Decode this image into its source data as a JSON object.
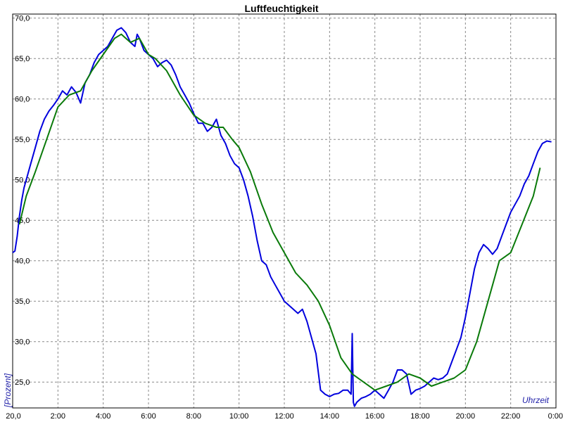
{
  "chart_data": {
    "type": "line",
    "title": "Luftfeuchtigkeit",
    "xlabel": "Uhrzeit",
    "ylabel": "[Prozent]",
    "ylim": [
      21.8,
      70.5
    ],
    "xlim": [
      0,
      24
    ],
    "x_unit": "hours",
    "grid": true,
    "legend": "none",
    "yticks": [
      "25,0",
      "30,0",
      "35,0",
      "40,0",
      "45,0",
      "50,0",
      "55,0",
      "60,0",
      "65,0",
      "70,0"
    ],
    "ytick_values": [
      25,
      30,
      35,
      40,
      45,
      50,
      55,
      60,
      65,
      70
    ],
    "xticks": [
      "20,0",
      "2:00",
      "4:00",
      "6:00",
      "8:00",
      "10:00",
      "12:00",
      "14:00",
      "16:00",
      "18:00",
      "20:00",
      "22:00",
      "0:00"
    ],
    "xtick_values": [
      0,
      2,
      4,
      6,
      8,
      10,
      12,
      14,
      16,
      18,
      20,
      22,
      24
    ],
    "series": [
      {
        "color": "#0000dd",
        "x": [
          0,
          0.1,
          0.2,
          0.3,
          0.4,
          0.5,
          0.6,
          0.8,
          1.0,
          1.2,
          1.4,
          1.6,
          1.8,
          2.0,
          2.2,
          2.4,
          2.6,
          2.8,
          3.0,
          3.2,
          3.4,
          3.6,
          3.8,
          4.0,
          4.2,
          4.4,
          4.6,
          4.8,
          5.0,
          5.2,
          5.4,
          5.5,
          5.6,
          5.8,
          6.0,
          6.2,
          6.4,
          6.6,
          6.8,
          7.0,
          7.2,
          7.4,
          7.6,
          7.8,
          8.0,
          8.2,
          8.4,
          8.6,
          8.8,
          9.0,
          9.2,
          9.4,
          9.6,
          9.8,
          10.0,
          10.2,
          10.4,
          10.6,
          10.8,
          11.0,
          11.2,
          11.4,
          11.6,
          11.8,
          12.0,
          12.2,
          12.4,
          12.6,
          12.8,
          13.0,
          13.2,
          13.4,
          13.6,
          13.8,
          14.0,
          14.2,
          14.4,
          14.6,
          14.8,
          14.95,
          15.0,
          15.05,
          15.1,
          15.2,
          15.4,
          15.6,
          15.8,
          16.0,
          16.2,
          16.4,
          16.6,
          16.8,
          17.0,
          17.2,
          17.4,
          17.6,
          17.8,
          18.0,
          18.2,
          18.4,
          18.6,
          18.8,
          19.0,
          19.2,
          19.4,
          19.6,
          19.8,
          20.0,
          20.2,
          20.4,
          20.6,
          20.8,
          21.0,
          21.2,
          21.4,
          21.6,
          21.8,
          22.0,
          22.2,
          22.4,
          22.6,
          22.8,
          23.0,
          23.2,
          23.4,
          23.6,
          23.8
        ],
        "y": [
          41.0,
          41.2,
          43.0,
          45.5,
          47.5,
          49.0,
          50.0,
          52.0,
          54.0,
          56.0,
          57.5,
          58.5,
          59.2,
          60.0,
          61.0,
          60.5,
          61.5,
          60.8,
          59.5,
          62.0,
          63.0,
          64.5,
          65.5,
          66.0,
          66.5,
          67.5,
          68.5,
          68.8,
          68.2,
          67.0,
          66.5,
          68.0,
          67.5,
          66.0,
          65.5,
          65.0,
          64.0,
          64.5,
          64.8,
          64.2,
          63.0,
          61.5,
          60.5,
          59.5,
          58.2,
          57.0,
          57.0,
          56.0,
          56.5,
          57.5,
          55.5,
          54.5,
          53.0,
          52.0,
          51.5,
          50.0,
          48.0,
          45.5,
          42.5,
          40.0,
          39.5,
          38.0,
          37.0,
          36.0,
          35.0,
          34.5,
          34.0,
          33.5,
          34.0,
          32.5,
          30.5,
          28.5,
          24.0,
          23.5,
          23.2,
          23.5,
          23.6,
          24.0,
          24.0,
          23.5,
          31.0,
          22.5,
          22.0,
          22.5,
          23.0,
          23.2,
          23.5,
          24.0,
          23.5,
          23.0,
          24.0,
          25.0,
          26.5,
          26.5,
          26.0,
          23.5,
          24.0,
          24.2,
          24.5,
          25.0,
          25.5,
          25.3,
          25.5,
          26.0,
          27.5,
          29.0,
          30.5,
          33.0,
          36.0,
          39.0,
          41.0,
          42.0,
          41.5,
          40.8,
          41.5,
          43.0,
          44.5,
          46.0,
          47.0,
          48.0,
          49.5,
          50.5,
          52.0,
          53.5,
          54.5,
          54.8,
          54.7
        ]
      },
      {
        "color": "#0a7a0a",
        "x": [
          0.3,
          0.6,
          1.0,
          1.5,
          2.0,
          2.5,
          3.0,
          3.5,
          4.0,
          4.5,
          4.8,
          5.2,
          5.6,
          6.0,
          6.3,
          6.8,
          7.4,
          8.0,
          8.5,
          9.0,
          9.3,
          9.7,
          10.0,
          10.5,
          11.0,
          11.5,
          12.0,
          12.5,
          13.0,
          13.5,
          14.0,
          14.5,
          15.0,
          15.5,
          16.0,
          16.5,
          17.0,
          17.5,
          18.0,
          18.5,
          19.0,
          19.5,
          20.0,
          20.5,
          21.0,
          21.5,
          22.0,
          22.5,
          23.0,
          23.3
        ],
        "y": [
          44.5,
          48.0,
          51.0,
          55.0,
          59.0,
          60.5,
          61.0,
          63.5,
          65.5,
          67.5,
          68.0,
          67.0,
          67.5,
          65.5,
          65.0,
          63.5,
          60.5,
          58.0,
          57.0,
          56.5,
          56.5,
          55.0,
          54.0,
          51.0,
          47.0,
          43.5,
          41.0,
          38.5,
          37.0,
          35.0,
          32.0,
          28.0,
          26.0,
          25.0,
          24.0,
          24.5,
          25.0,
          26.0,
          25.5,
          24.5,
          25.0,
          25.5,
          26.5,
          30.0,
          35.0,
          40.0,
          41.0,
          44.5,
          48.0,
          51.5
        ]
      }
    ]
  }
}
